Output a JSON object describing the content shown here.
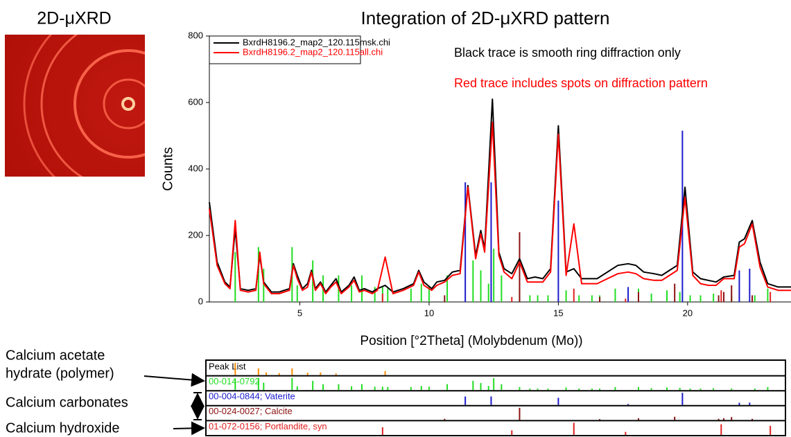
{
  "image_title": "2D-μXRD",
  "chart_data": {
    "type": "line",
    "title": "Integration of 2D-μXRD pattern",
    "x_label": "Position [°2Theta] (Molybdenum (Mo))",
    "y_label": "Counts",
    "xlim": [
      1.5,
      24
    ],
    "xticks": [
      5,
      10,
      15,
      20
    ],
    "ylim": [
      0,
      800
    ],
    "yticks": [
      0,
      200,
      400,
      600,
      800
    ],
    "x": [
      1.5,
      1.8,
      2.1,
      2.3,
      2.5,
      2.7,
      3.0,
      3.3,
      3.45,
      3.6,
      3.9,
      4.2,
      4.6,
      4.75,
      4.9,
      5.1,
      5.3,
      5.45,
      5.6,
      5.8,
      6.0,
      6.2,
      6.4,
      6.6,
      6.9,
      7.1,
      7.3,
      7.5,
      7.8,
      8.0,
      8.3,
      8.6,
      9.0,
      9.4,
      9.6,
      9.8,
      10.1,
      10.3,
      10.6,
      10.9,
      11.2,
      11.5,
      11.8,
      12.0,
      12.15,
      12.45,
      12.7,
      12.9,
      13.2,
      13.5,
      13.8,
      14.1,
      14.4,
      14.7,
      15.0,
      15.3,
      15.6,
      15.9,
      16.2,
      16.5,
      16.9,
      17.3,
      17.7,
      18.0,
      18.3,
      18.7,
      19.0,
      19.3,
      19.6,
      19.9,
      20.2,
      20.5,
      20.8,
      21.1,
      21.4,
      21.8,
      22.0,
      22.2,
      22.5,
      22.8,
      23.1,
      23.5,
      24.0
    ],
    "series": [
      {
        "name": "BxrdH8196.2_map2_120.115msk.chi",
        "color": "#000000",
        "values": [
          300,
          120,
          60,
          45,
          220,
          40,
          35,
          40,
          140,
          60,
          30,
          30,
          40,
          115,
          80,
          40,
          55,
          95,
          40,
          60,
          30,
          50,
          70,
          30,
          50,
          75,
          35,
          40,
          30,
          40,
          50,
          30,
          40,
          55,
          95,
          60,
          40,
          60,
          65,
          90,
          95,
          350,
          140,
          215,
          160,
          610,
          150,
          100,
          85,
          130,
          70,
          75,
          70,
          100,
          530,
          90,
          100,
          70,
          70,
          70,
          90,
          110,
          115,
          110,
          90,
          85,
          80,
          95,
          110,
          345,
          90,
          70,
          65,
          60,
          75,
          80,
          180,
          190,
          245,
          120,
          55,
          45,
          45
        ]
      },
      {
        "name": "BxrdH8196.2_map2_120.115all.chi",
        "color": "#ff0000",
        "values": [
          280,
          110,
          55,
          40,
          245,
          35,
          30,
          35,
          150,
          55,
          25,
          25,
          35,
          110,
          70,
          35,
          45,
          90,
          35,
          55,
          25,
          45,
          60,
          25,
          45,
          65,
          30,
          35,
          25,
          35,
          135,
          25,
          35,
          50,
          90,
          50,
          35,
          50,
          60,
          80,
          85,
          345,
          130,
          205,
          150,
          540,
          140,
          90,
          70,
          120,
          60,
          60,
          60,
          90,
          505,
          80,
          235,
          55,
          55,
          55,
          70,
          85,
          90,
          85,
          70,
          65,
          65,
          80,
          95,
          315,
          80,
          55,
          50,
          50,
          70,
          70,
          165,
          175,
          235,
          105,
          45,
          35,
          35
        ]
      }
    ],
    "annotations": [
      {
        "text": "Black trace is smooth ring diffraction only",
        "color": "#000000"
      },
      {
        "text": "Red trace includes spots on diffraction pattern",
        "color": "#ff0000"
      }
    ],
    "peak_list": {
      "name": "Peak List",
      "color": "#ff8c00",
      "x": [
        2.5,
        3.4,
        3.7,
        4.2,
        4.7,
        5.3,
        5.8,
        6.4,
        8.3
      ],
      "values": [
        180,
        100,
        40,
        30,
        100,
        35,
        40,
        25,
        60
      ]
    },
    "references": [
      {
        "name": "00-014-0792",
        "color": "#22dd22",
        "x": [
          2.5,
          3.4,
          3.6,
          4.7,
          4.9,
          5.5,
          5.9,
          6.5,
          7.0,
          7.4,
          7.9,
          8.2,
          8.4,
          9.3,
          9.7,
          10.0,
          10.7,
          11.7,
          12.0,
          12.3,
          12.5,
          12.8,
          13.5,
          13.9,
          14.2,
          14.6,
          15.3,
          15.8,
          16.3,
          16.6,
          17.2,
          18.1,
          18.6,
          19.2,
          19.7,
          20.1,
          20.5,
          21.0,
          21.7,
          22.6,
          23.1
        ],
        "values": [
          150,
          165,
          100,
          165,
          50,
          125,
          80,
          80,
          50,
          80,
          45,
          45,
          40,
          40,
          55,
          45,
          80,
          125,
          95,
          55,
          160,
          80,
          40,
          20,
          20,
          20,
          35,
          20,
          20,
          20,
          40,
          40,
          25,
          35,
          30,
          20,
          20,
          25,
          20,
          20,
          40
        ]
      },
      {
        "name": "00-004-0844; Vaterite",
        "color": "#1a1acc",
        "x": [
          11.4,
          12.4,
          15.0,
          17.7,
          19.8,
          22.0,
          22.4
        ],
        "values": [
          360,
          360,
          305,
          45,
          515,
          95,
          100
        ]
      },
      {
        "name": "00-024-0027; Calcite",
        "color": "#8b1010",
        "x": [
          10.6,
          13.5,
          16.6,
          18.1,
          19.5,
          21.2,
          21.4,
          21.7,
          22.5
        ],
        "values": [
          20,
          210,
          15,
          30,
          55,
          20,
          30,
          50,
          20
        ]
      },
      {
        "name": "01-072-0156; Portlandite, syn",
        "color": "#e02020",
        "x": [
          8.2,
          13.2,
          15.6,
          17.6,
          21.3,
          23.2
        ],
        "values": [
          25,
          15,
          40,
          10,
          35,
          30
        ]
      }
    ],
    "phase_labels": [
      "Calcium acetate",
      "hydrate (polymer)",
      "Calcium carbonates",
      "Calcium hydroxide"
    ]
  }
}
